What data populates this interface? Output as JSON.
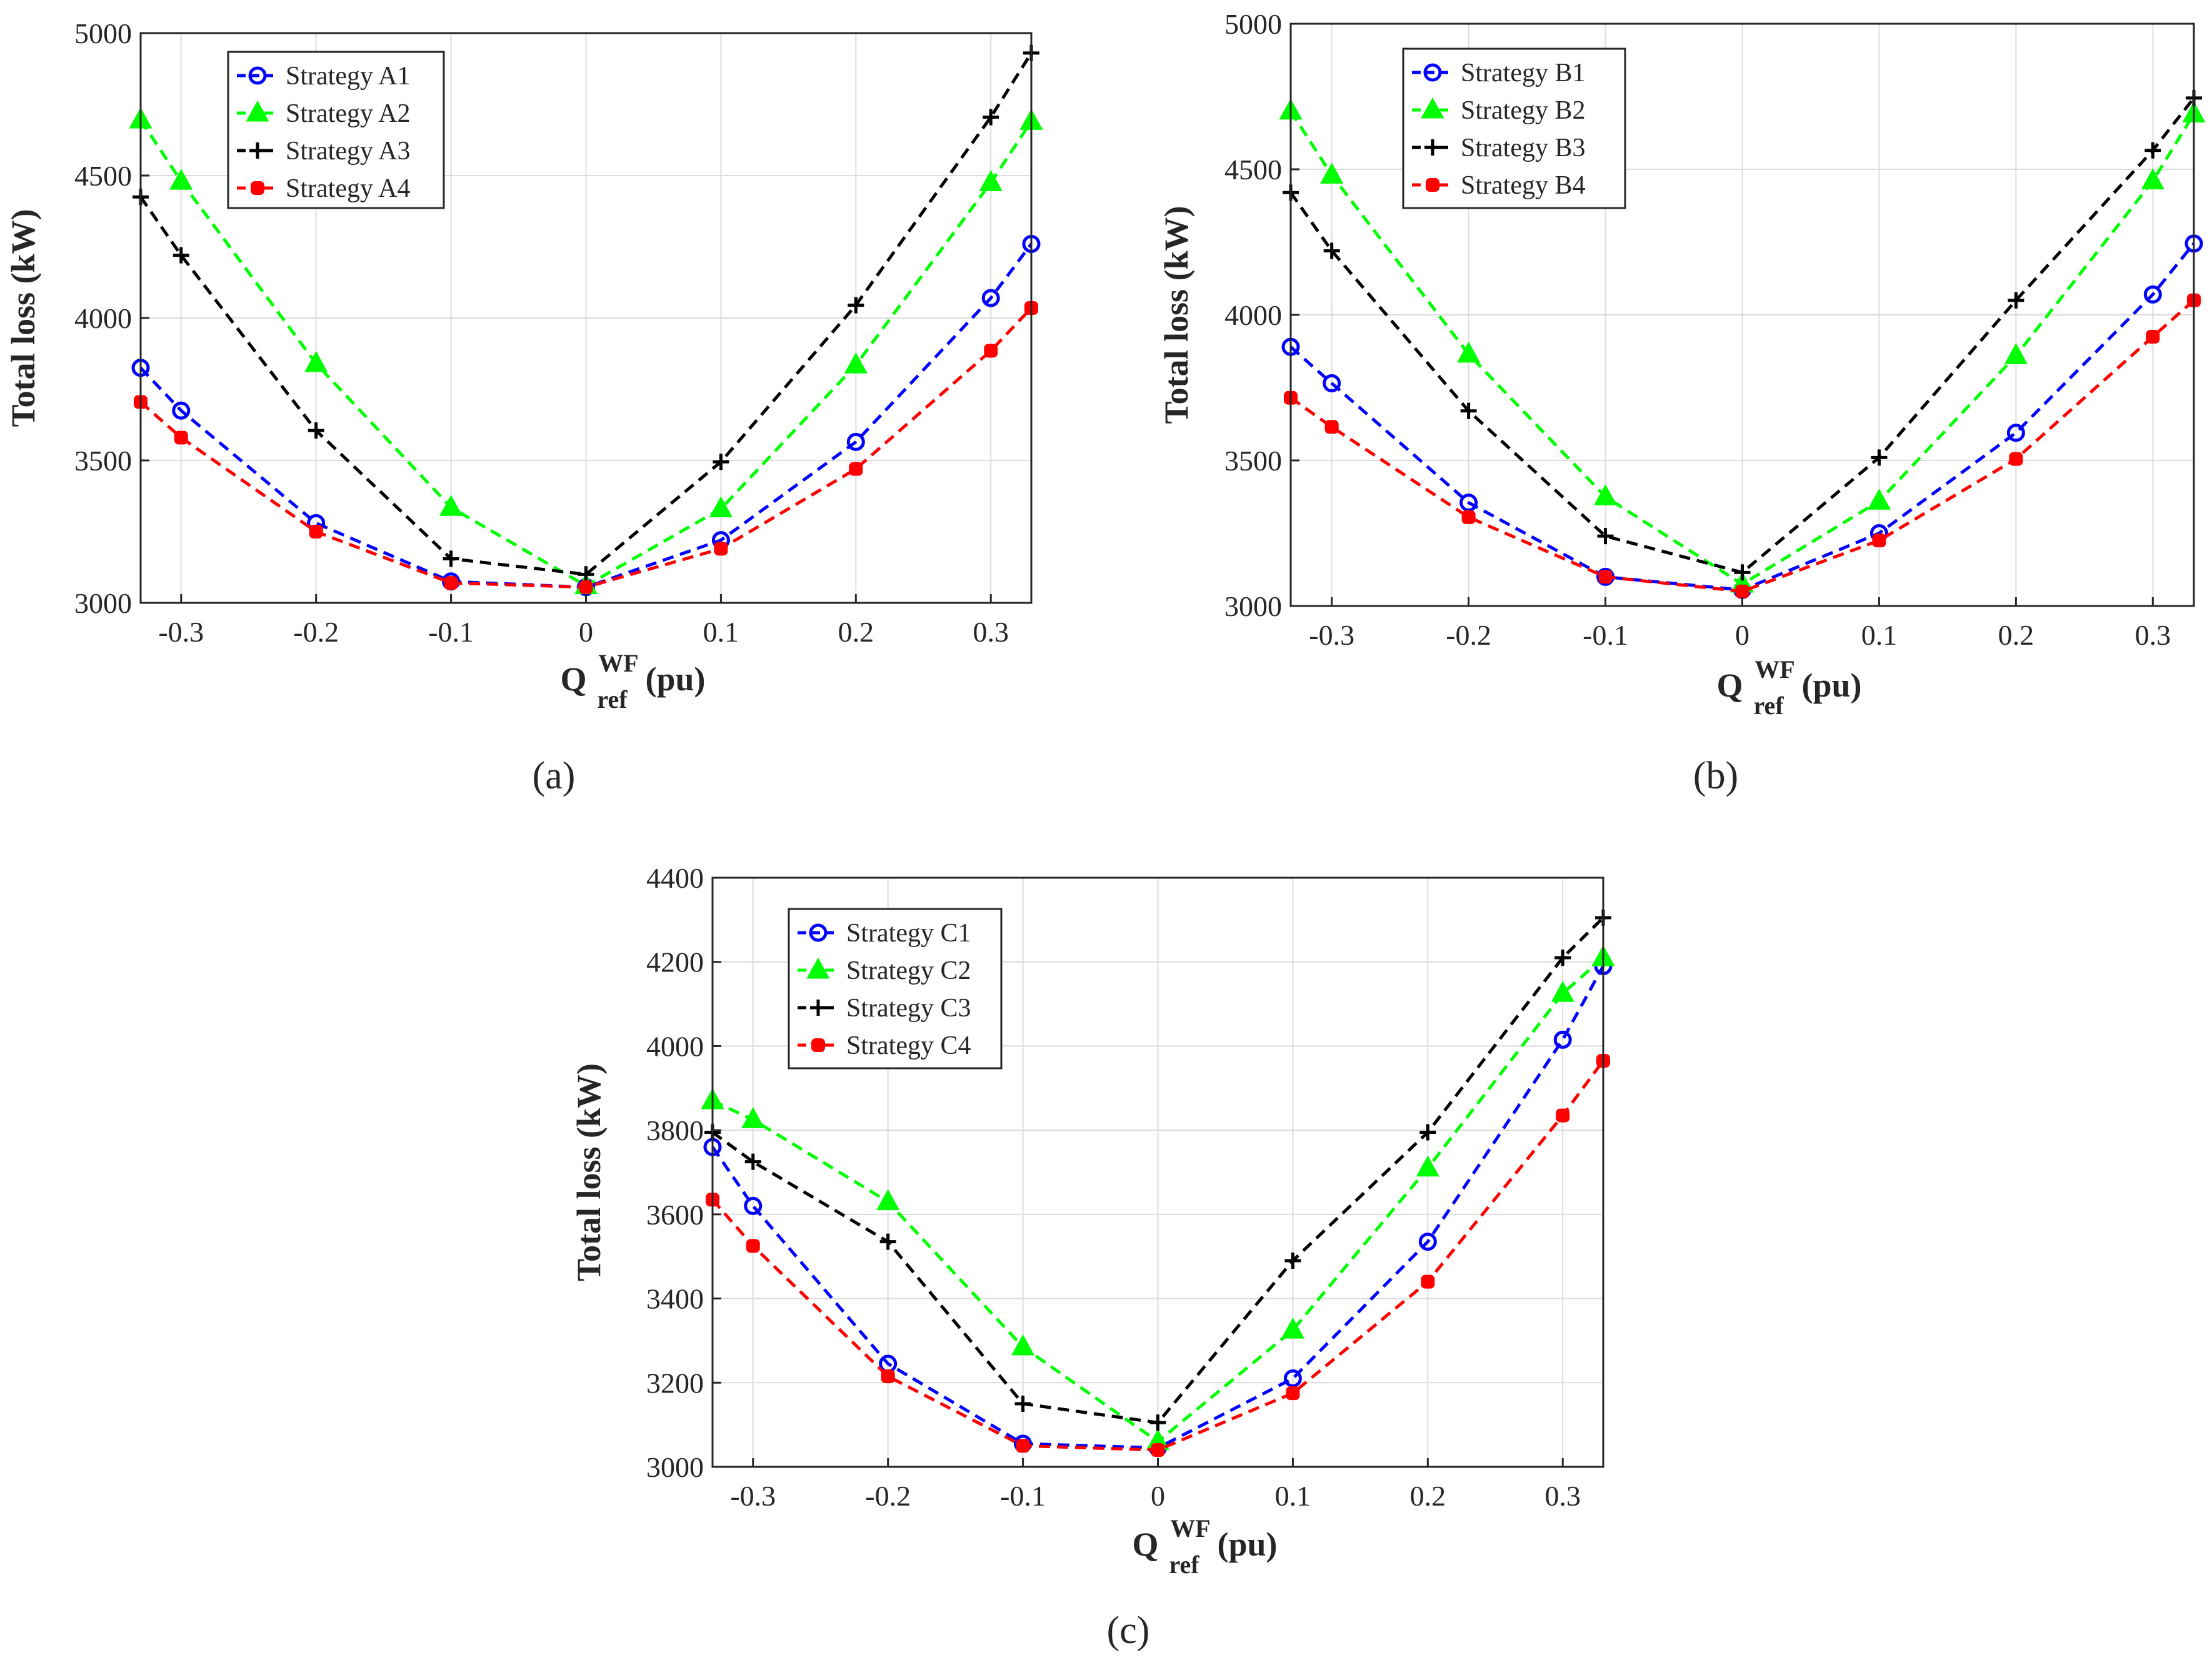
{
  "chart_data": [
    {
      "type": "line",
      "caption": "(a)",
      "ylabel": "Total loss (kW)",
      "xlabel": {
        "base": "Q",
        "subscript": "ref",
        "superscript": "WF",
        "unit": "(pu)"
      },
      "x": [
        -0.33,
        -0.3,
        -0.2,
        -0.1,
        0,
        0.1,
        0.2,
        0.3,
        0.33
      ],
      "xlim": [
        -0.33,
        0.33
      ],
      "ylim": [
        3000,
        5000
      ],
      "xticks": [
        -0.3,
        -0.2,
        -0.1,
        0,
        0.1,
        0.2,
        0.3
      ],
      "xtick_labels": [
        "-0.3",
        "-0.2",
        "-0.1",
        "0",
        "0.1",
        "0.2",
        "0.3"
      ],
      "yticks": [
        3000,
        3500,
        4000,
        4500,
        5000
      ],
      "ytick_labels": [
        "3000",
        "3500",
        "4000",
        "4500",
        "5000"
      ],
      "grid": true,
      "legend_position": "top-left",
      "series": [
        {
          "name": "Strategy A1",
          "color": "#0000ff",
          "marker": "circle",
          "values": [
            3825,
            3675,
            3280,
            3075,
            3055,
            3220,
            3565,
            4070,
            4260
          ]
        },
        {
          "name": "Strategy A2",
          "color": "#00ff00",
          "marker": "triangle",
          "values": [
            4695,
            4480,
            3840,
            3335,
            3060,
            3330,
            3835,
            4475,
            4690
          ]
        },
        {
          "name": "Strategy A3",
          "color": "#000000",
          "marker": "plus",
          "values": [
            4425,
            4220,
            3605,
            3155,
            3100,
            3495,
            4045,
            4705,
            4930
          ]
        },
        {
          "name": "Strategy A4",
          "color": "#ff0000",
          "marker": "square",
          "values": [
            3705,
            3580,
            3250,
            3070,
            3055,
            3190,
            3470,
            3885,
            4035
          ]
        }
      ]
    },
    {
      "type": "line",
      "caption": "(b)",
      "ylabel": "Total loss (kW)",
      "xlabel": {
        "base": "Q",
        "subscript": "ref",
        "superscript": "WF",
        "unit": "(pu)"
      },
      "x": [
        -0.33,
        -0.3,
        -0.2,
        -0.1,
        0,
        0.1,
        0.2,
        0.3,
        0.33
      ],
      "xlim": [
        -0.33,
        0.33
      ],
      "ylim": [
        3000,
        5000
      ],
      "xticks": [
        -0.3,
        -0.2,
        -0.1,
        0,
        0.1,
        0.2,
        0.3
      ],
      "xtick_labels": [
        "-0.3",
        "-0.2",
        "-0.1",
        "0",
        "0.1",
        "0.2",
        "0.3"
      ],
      "yticks": [
        3000,
        3500,
        4000,
        4500,
        5000
      ],
      "ytick_labels": [
        "3000",
        "3500",
        "4000",
        "4500",
        "5000"
      ],
      "grid": true,
      "legend_position": "top-left",
      "series": [
        {
          "name": "Strategy B1",
          "color": "#0000ff",
          "marker": "circle",
          "values": [
            3890,
            3765,
            3355,
            3100,
            3055,
            3250,
            3595,
            4070,
            4245
          ]
        },
        {
          "name": "Strategy B2",
          "color": "#00ff00",
          "marker": "triangle",
          "values": [
            4700,
            4480,
            3865,
            3375,
            3075,
            3360,
            3860,
            4460,
            4690
          ]
        },
        {
          "name": "Strategy B3",
          "color": "#000000",
          "marker": "plus",
          "values": [
            4420,
            4220,
            3670,
            3240,
            3115,
            3510,
            4050,
            4565,
            4745
          ]
        },
        {
          "name": "Strategy B4",
          "color": "#ff0000",
          "marker": "square",
          "values": [
            3715,
            3615,
            3305,
            3100,
            3050,
            3225,
            3505,
            3925,
            4050
          ]
        }
      ]
    },
    {
      "type": "line",
      "caption": "(c)",
      "ylabel": "Total loss (kW)",
      "xlabel": {
        "base": "Q",
        "subscript": "ref",
        "superscript": "WF",
        "unit": "(pu)"
      },
      "x": [
        -0.33,
        -0.3,
        -0.2,
        -0.1,
        0,
        0.1,
        0.2,
        0.3,
        0.33
      ],
      "xlim": [
        -0.33,
        0.33
      ],
      "ylim": [
        3000,
        4400
      ],
      "xticks": [
        -0.3,
        -0.2,
        -0.1,
        0,
        0.1,
        0.2,
        0.3
      ],
      "xtick_labels": [
        "-0.3",
        "-0.2",
        "-0.1",
        "0",
        "0.1",
        "0.2",
        "0.3"
      ],
      "yticks": [
        3000,
        3200,
        3400,
        3600,
        3800,
        4000,
        4200,
        4400
      ],
      "ytick_labels": [
        "3000",
        "3200",
        "3400",
        "3600",
        "3800",
        "4000",
        "4200",
        "4400"
      ],
      "grid": true,
      "legend_position": "top-left",
      "series": [
        {
          "name": "Strategy C1",
          "color": "#0000ff",
          "marker": "circle",
          "values": [
            3760,
            3620,
            3245,
            3055,
            3045,
            3210,
            3535,
            4015,
            4190
          ]
        },
        {
          "name": "Strategy C2",
          "color": "#00ff00",
          "marker": "triangle",
          "values": [
            3870,
            3825,
            3630,
            3285,
            3060,
            3325,
            3710,
            4125,
            4210
          ]
        },
        {
          "name": "Strategy C3",
          "color": "#000000",
          "marker": "plus",
          "values": [
            3795,
            3725,
            3535,
            3150,
            3105,
            3490,
            3795,
            4210,
            4305
          ]
        },
        {
          "name": "Strategy C4",
          "color": "#ff0000",
          "marker": "square",
          "values": [
            3635,
            3525,
            3215,
            3050,
            3040,
            3175,
            3440,
            3835,
            3965
          ]
        }
      ]
    }
  ]
}
